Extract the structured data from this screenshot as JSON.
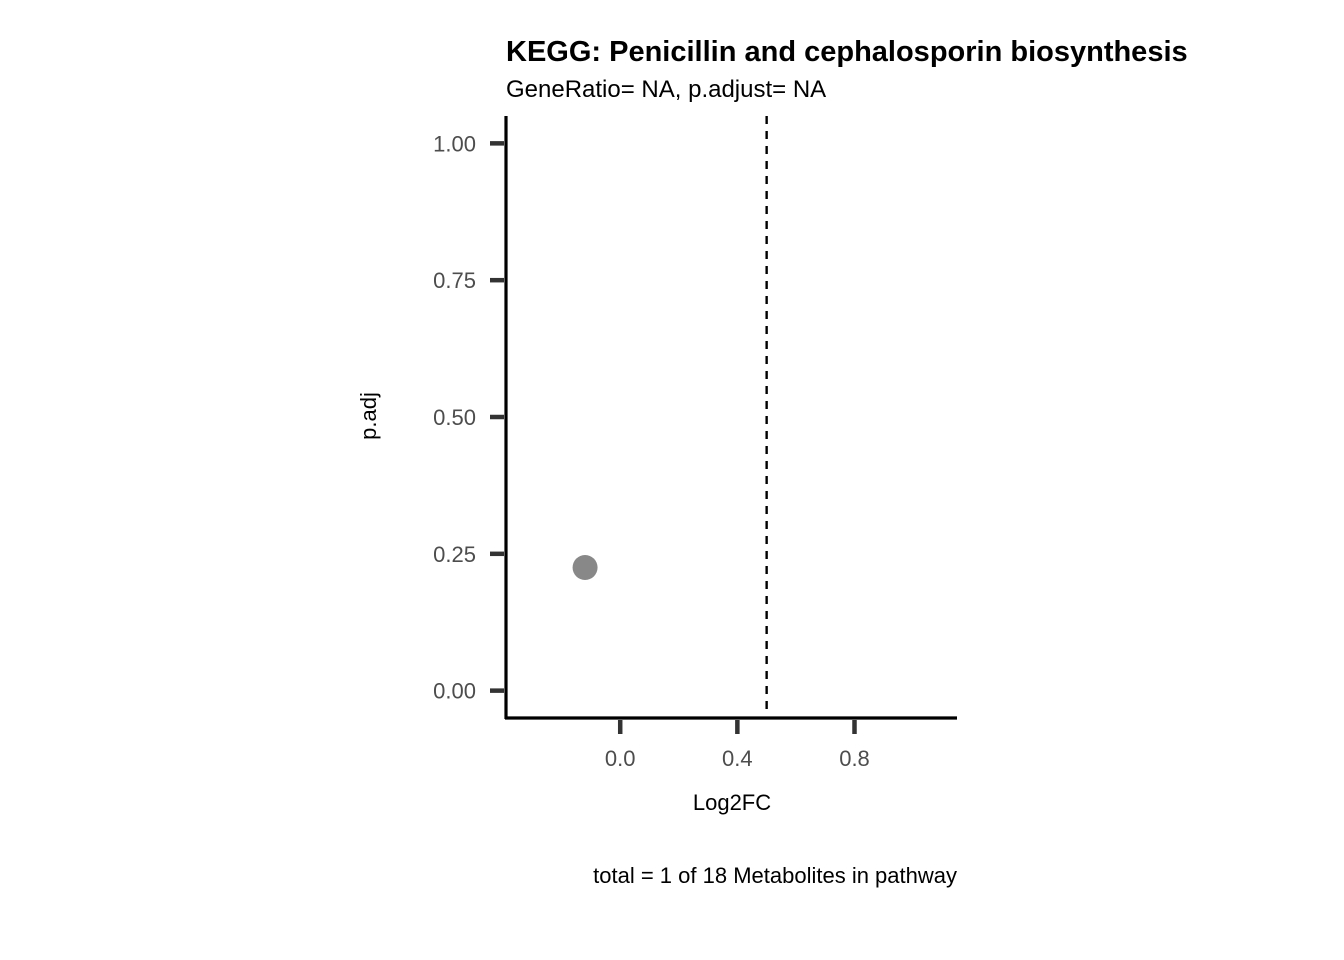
{
  "chart_data": {
    "type": "scatter",
    "title": "KEGG: Penicillin and cephalosporin biosynthesis",
    "subtitle": "GeneRatio= NA, p.adjust= NA",
    "xlabel": "Log2FC",
    "ylabel": "p.adj",
    "caption": "total = 1 of 18 Metabolites in pathway",
    "xlim": [
      -0.39,
      1.15
    ],
    "ylim": [
      -0.05,
      1.05
    ],
    "x_ticks": [
      0.0,
      0.4,
      0.8
    ],
    "x_tick_labels": [
      "0.0",
      "0.4",
      "0.8"
    ],
    "y_ticks": [
      0.0,
      0.25,
      0.5,
      0.75,
      1.0
    ],
    "y_tick_labels": [
      "0.00",
      "0.25",
      "0.50",
      "0.75",
      "1.00"
    ],
    "vline": {
      "x": 0.5,
      "style": "dashed"
    },
    "points": [
      {
        "x": -0.12,
        "y": 0.225,
        "color": "#888888"
      }
    ],
    "grid": false
  }
}
